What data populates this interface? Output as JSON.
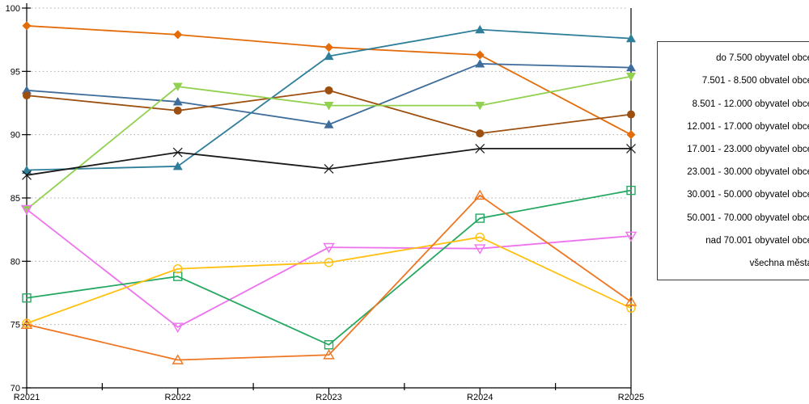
{
  "chart_data": {
    "type": "line",
    "title": "",
    "xlabel": "",
    "ylabel": "",
    "x_categories": [
      "R2021",
      "R2022",
      "R2023",
      "R2024",
      "R2025"
    ],
    "ylim": [
      70,
      100
    ],
    "y_ticks": [
      70,
      75,
      80,
      85,
      90,
      95,
      100
    ],
    "grid": "horizontal-dotted",
    "grid_color": "#ABABAB",
    "axis_color": "#000000",
    "legend_position": "right-outside",
    "series": [
      {
        "name": "do 7.500 obyvatel obce",
        "color": "#E36C09",
        "marker": "diamond-filled",
        "values": [
          98.6,
          97.9,
          96.9,
          96.3,
          90.0
        ]
      },
      {
        "name": "7.501 - 8.500 obvatel obce",
        "color": "#3E6D9C",
        "marker": "triangle-up-filled",
        "values": [
          93.5,
          92.6,
          90.8,
          95.6,
          95.3
        ]
      },
      {
        "name": "8.501 - 12.000 obyvatel obce",
        "color": "#9C4F0E",
        "marker": "circle-filled",
        "values": [
          93.1,
          91.9,
          93.5,
          90.1,
          91.6
        ]
      },
      {
        "name": "12.001 - 17.000 obyvatel obce",
        "color": "#2F7F9A",
        "marker": "triangle-up-filled",
        "values": [
          87.2,
          87.5,
          96.2,
          98.3,
          97.6
        ]
      },
      {
        "name": "17.001 - 23.000 obyvatel obce",
        "color": "#92D050",
        "marker": "triangle-down-filled",
        "values": [
          84.1,
          93.8,
          92.3,
          92.3,
          94.6
        ]
      },
      {
        "name": "23.001 - 30.000 obyvatel obce",
        "color": "#EE73EE",
        "marker": "triangle-down-open",
        "values": [
          84.1,
          74.8,
          81.1,
          81.0,
          82.0
        ]
      },
      {
        "name": "30.001 - 50.000 obyvatel obce",
        "color": "#26A862",
        "marker": "square-open",
        "values": [
          77.1,
          78.8,
          73.4,
          83.4,
          85.6
        ]
      },
      {
        "name": "50.001 - 70.000 obyvatel obce",
        "color": "#FFC010",
        "marker": "circle-open",
        "values": [
          75.1,
          79.4,
          79.9,
          81.9,
          76.3
        ]
      },
      {
        "name": "nad 70.001 obyvatel obce",
        "color": "#EF7622",
        "marker": "triangle-up-open",
        "values": [
          75.0,
          72.2,
          72.6,
          85.2,
          76.8
        ]
      },
      {
        "name": "všechna města",
        "color": "#1A1A1A",
        "marker": "x",
        "values": [
          86.8,
          88.6,
          87.3,
          88.9,
          88.9
        ]
      }
    ]
  }
}
